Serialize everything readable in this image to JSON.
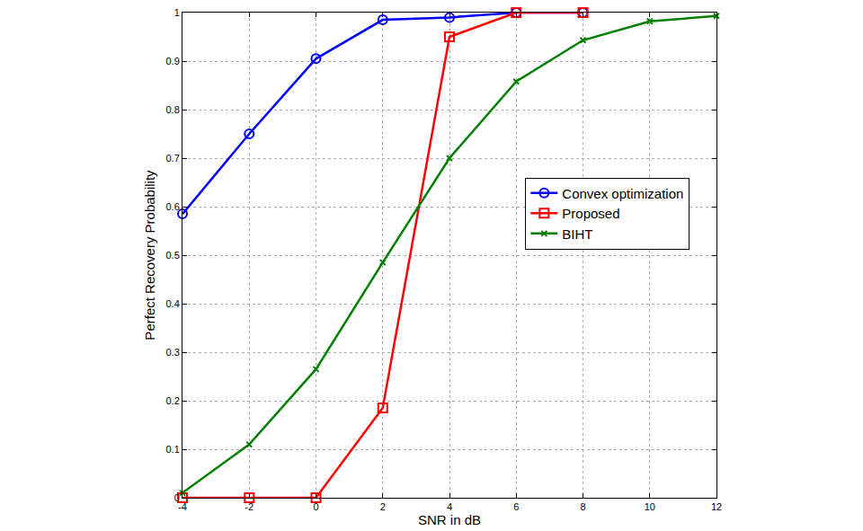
{
  "chart_data": {
    "type": "line",
    "x_label": "SNR in dB",
    "y_label": "Perfect Recovery Probability",
    "xlim": [
      -4,
      12
    ],
    "xticks": [
      -4,
      -2,
      0,
      2,
      4,
      6,
      8,
      10,
      12
    ],
    "ylim": [
      0,
      1
    ],
    "yticks": [
      0,
      0.1,
      0.2,
      0.3,
      0.4,
      0.5,
      0.6,
      0.7,
      0.8,
      0.9,
      1
    ],
    "grid": true,
    "legend": "center right",
    "series": [
      {
        "name": "Convex optimization",
        "color": "#0000ff",
        "marker": "circle",
        "line_style": "solid",
        "x": [
          -4,
          -2,
          0,
          2,
          4,
          6,
          8
        ],
        "values": [
          0.585,
          0.75,
          0.905,
          0.985,
          0.99,
          1,
          1
        ]
      },
      {
        "name": "Proposed",
        "color": "#ff0000",
        "marker": "square",
        "line_style": "solid",
        "x": [
          -4,
          -2,
          0,
          2,
          4,
          6,
          8
        ],
        "values": [
          0,
          0,
          0,
          0.185,
          0.95,
          1,
          1
        ]
      },
      {
        "name": "BIHT",
        "color": "#008000",
        "marker": "x",
        "line_style": "solid",
        "x": [
          -4,
          -2,
          0,
          2,
          4,
          6,
          8,
          10,
          12
        ],
        "values": [
          0.01,
          0.11,
          0.265,
          0.485,
          0.7,
          0.858,
          0.943,
          0.982,
          0.993
        ]
      }
    ]
  }
}
